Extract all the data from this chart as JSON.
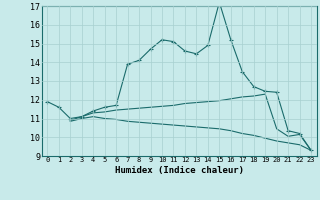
{
  "xlabel": "Humidex (Indice chaleur)",
  "ylabel": "",
  "background_color": "#c8eaea",
  "grid_color": "#a8d0d0",
  "line_color": "#1a6b6b",
  "xlim": [
    -0.5,
    23.5
  ],
  "ylim": [
    9,
    17
  ],
  "xticks": [
    0,
    1,
    2,
    3,
    4,
    5,
    6,
    7,
    8,
    9,
    10,
    11,
    12,
    13,
    14,
    15,
    16,
    17,
    18,
    19,
    20,
    21,
    22,
    23
  ],
  "yticks": [
    9,
    10,
    11,
    12,
    13,
    14,
    15,
    16,
    17
  ],
  "line1_x": [
    0,
    1,
    2,
    3,
    4,
    5,
    6,
    7,
    8,
    9,
    10,
    11,
    12,
    13,
    14,
    15,
    16,
    17,
    18,
    19,
    20,
    21,
    22,
    23
  ],
  "line1_y": [
    11.9,
    11.6,
    11.0,
    11.1,
    11.4,
    11.6,
    11.7,
    13.9,
    14.1,
    14.7,
    15.2,
    15.1,
    14.6,
    14.45,
    14.9,
    17.2,
    15.2,
    13.5,
    12.7,
    12.45,
    12.4,
    10.35,
    10.2,
    9.3
  ],
  "line2_x": [
    2,
    3,
    4,
    5,
    6,
    7,
    8,
    9,
    10,
    11,
    12,
    13,
    14,
    15,
    16,
    17,
    18,
    19,
    20,
    21,
    22,
    23
  ],
  "line2_y": [
    10.9,
    11.1,
    11.3,
    11.35,
    11.45,
    11.5,
    11.55,
    11.6,
    11.65,
    11.7,
    11.8,
    11.85,
    11.9,
    11.95,
    12.05,
    12.15,
    12.2,
    12.3,
    10.45,
    10.05,
    10.15,
    9.3
  ],
  "line3_x": [
    2,
    3,
    4,
    5,
    6,
    7,
    8,
    9,
    10,
    11,
    12,
    13,
    14,
    15,
    16,
    17,
    18,
    19,
    20,
    21,
    22,
    23
  ],
  "line3_y": [
    10.85,
    11.0,
    11.1,
    11.0,
    10.95,
    10.85,
    10.8,
    10.75,
    10.7,
    10.65,
    10.6,
    10.55,
    10.5,
    10.45,
    10.35,
    10.2,
    10.1,
    9.95,
    9.8,
    9.7,
    9.6,
    9.3
  ]
}
